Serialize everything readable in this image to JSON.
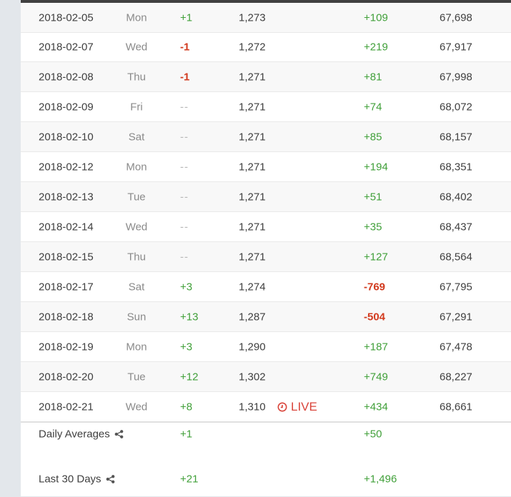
{
  "rows": [
    {
      "date": "2018-02-05",
      "day": "Mon",
      "sub_change": "+1",
      "sub_kind": "pos",
      "subs": "1,273",
      "live": "",
      "view_change": "+109",
      "view_kind": "pos",
      "views": "67,698"
    },
    {
      "date": "2018-02-07",
      "day": "Wed",
      "sub_change": "-1",
      "sub_kind": "neg",
      "subs": "1,272",
      "live": "",
      "view_change": "+219",
      "view_kind": "pos",
      "views": "67,917"
    },
    {
      "date": "2018-02-08",
      "day": "Thu",
      "sub_change": "-1",
      "sub_kind": "neg",
      "subs": "1,271",
      "live": "",
      "view_change": "+81",
      "view_kind": "pos",
      "views": "67,998"
    },
    {
      "date": "2018-02-09",
      "day": "Fri",
      "sub_change": "--",
      "sub_kind": "nil",
      "subs": "1,271",
      "live": "",
      "view_change": "+74",
      "view_kind": "pos",
      "views": "68,072"
    },
    {
      "date": "2018-02-10",
      "day": "Sat",
      "sub_change": "--",
      "sub_kind": "nil",
      "subs": "1,271",
      "live": "",
      "view_change": "+85",
      "view_kind": "pos",
      "views": "68,157"
    },
    {
      "date": "2018-02-12",
      "day": "Mon",
      "sub_change": "--",
      "sub_kind": "nil",
      "subs": "1,271",
      "live": "",
      "view_change": "+194",
      "view_kind": "pos",
      "views": "68,351"
    },
    {
      "date": "2018-02-13",
      "day": "Tue",
      "sub_change": "--",
      "sub_kind": "nil",
      "subs": "1,271",
      "live": "",
      "view_change": "+51",
      "view_kind": "pos",
      "views": "68,402"
    },
    {
      "date": "2018-02-14",
      "day": "Wed",
      "sub_change": "--",
      "sub_kind": "nil",
      "subs": "1,271",
      "live": "",
      "view_change": "+35",
      "view_kind": "pos",
      "views": "68,437"
    },
    {
      "date": "2018-02-15",
      "day": "Thu",
      "sub_change": "--",
      "sub_kind": "nil",
      "subs": "1,271",
      "live": "",
      "view_change": "+127",
      "view_kind": "pos",
      "views": "68,564"
    },
    {
      "date": "2018-02-17",
      "day": "Sat",
      "sub_change": "+3",
      "sub_kind": "pos",
      "subs": "1,274",
      "live": "",
      "view_change": "-769",
      "view_kind": "neg",
      "views": "67,795"
    },
    {
      "date": "2018-02-18",
      "day": "Sun",
      "sub_change": "+13",
      "sub_kind": "pos",
      "subs": "1,287",
      "live": "",
      "view_change": "-504",
      "view_kind": "neg",
      "views": "67,291"
    },
    {
      "date": "2018-02-19",
      "day": "Mon",
      "sub_change": "+3",
      "sub_kind": "pos",
      "subs": "1,290",
      "live": "",
      "view_change": "+187",
      "view_kind": "pos",
      "views": "67,478"
    },
    {
      "date": "2018-02-20",
      "day": "Tue",
      "sub_change": "+12",
      "sub_kind": "pos",
      "subs": "1,302",
      "live": "",
      "view_change": "+749",
      "view_kind": "pos",
      "views": "68,227"
    },
    {
      "date": "2018-02-21",
      "day": "Wed",
      "sub_change": "+8",
      "sub_kind": "pos",
      "subs": "1,310",
      "live": "LIVE",
      "view_change": "+434",
      "view_kind": "pos",
      "views": "68,661"
    }
  ],
  "summary": {
    "daily_averages": {
      "label": "Daily Averages",
      "sub_change": "+1",
      "view_change": "+50"
    },
    "last_30_days": {
      "label": "Last 30 Days",
      "sub_change": "+21",
      "view_change": "+1,496"
    }
  },
  "icons": {
    "live": "clock-icon",
    "share": "share-icon"
  },
  "colors": {
    "positive": "#41a03a",
    "negative": "#d23a1e",
    "live": "#d9443a",
    "header_bar": "#414141",
    "page_bg": "#e3e7eb"
  }
}
